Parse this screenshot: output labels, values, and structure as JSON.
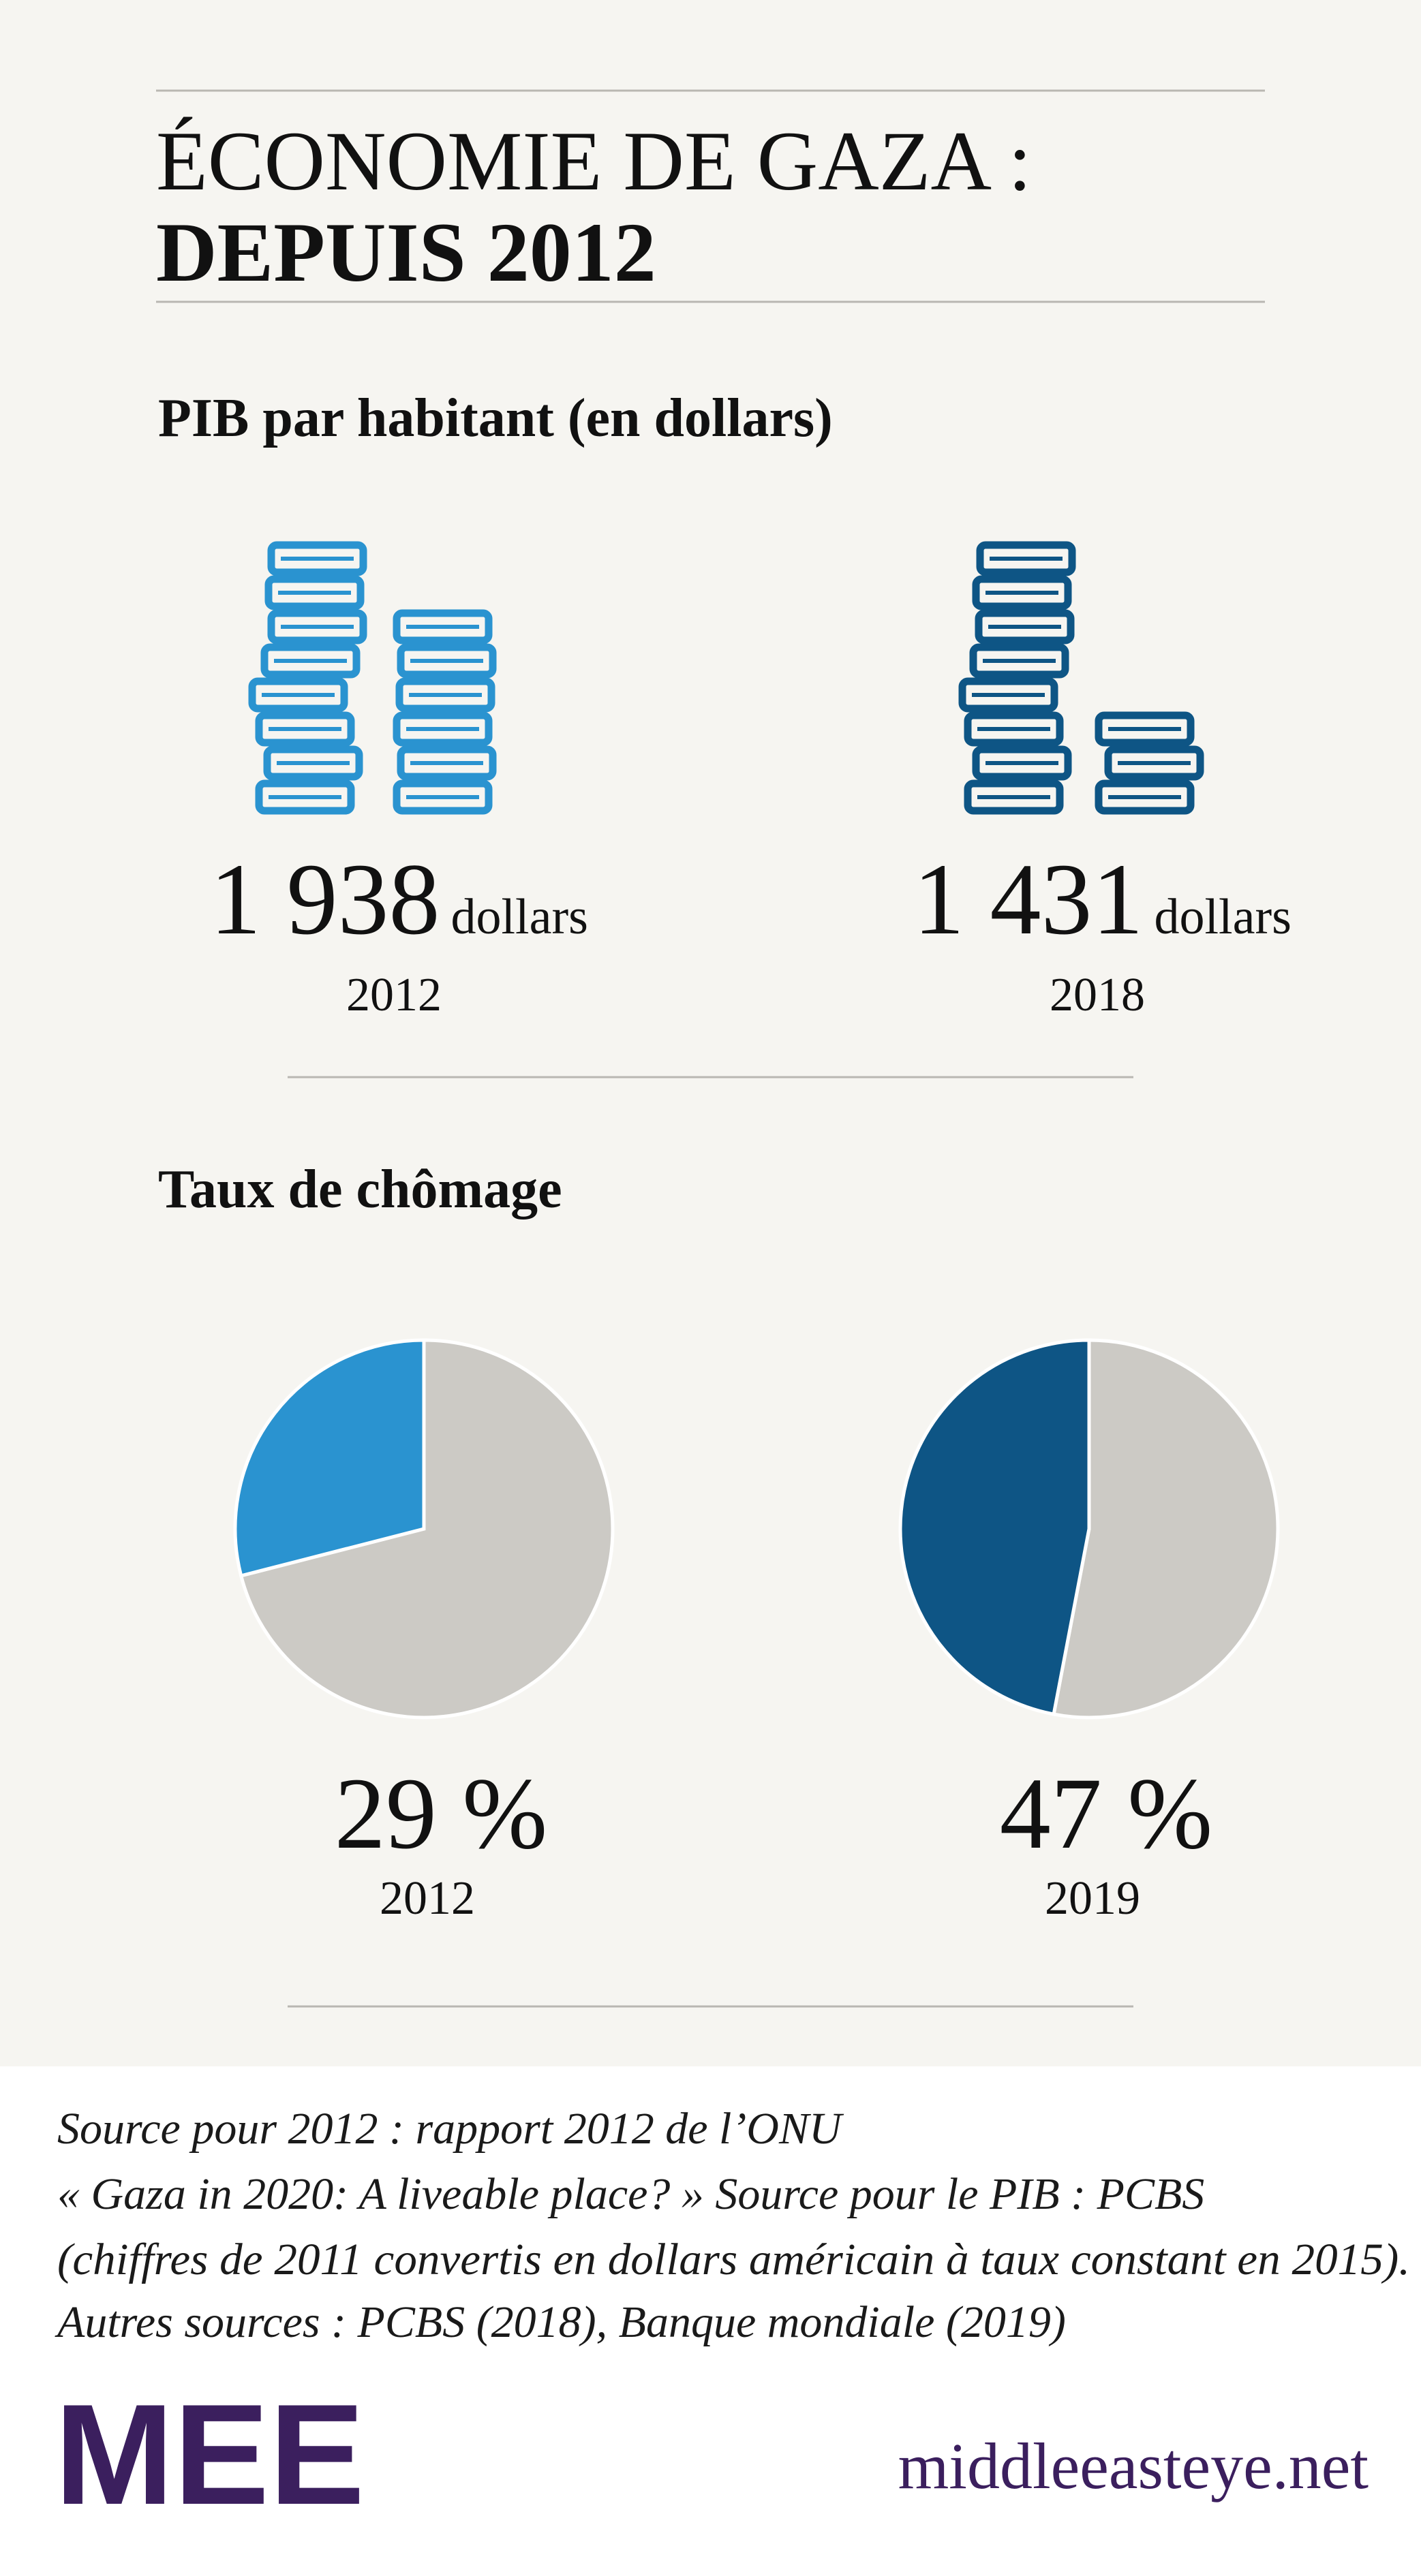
{
  "header": {
    "title_line1": "ÉCONOMIE DE GAZA :",
    "title_line2": "DEPUIS 2012"
  },
  "gdp": {
    "heading": "PIB par habitant (en dollars)",
    "items": [
      {
        "value": "1 938",
        "unit": "dollars",
        "year": "2012",
        "color": "#2a93d0"
      },
      {
        "value": "1 431",
        "unit": "dollars",
        "year": "2018",
        "color": "#0e5585"
      }
    ]
  },
  "unemployment": {
    "heading": "Taux de chômage",
    "charts": [
      {
        "type": "pie",
        "values": [
          29
        ],
        "value_labels": [
          "29 %"
        ],
        "year": "2012",
        "color": "#2a93d0",
        "rest_color": "#cccac5"
      },
      {
        "type": "pie",
        "values": [
          47
        ],
        "value_labels": [
          "47 %"
        ],
        "year": "2019",
        "color": "#0e5585",
        "rest_color": "#cccac5"
      }
    ]
  },
  "source": {
    "lines": [
      "Source pour 2012 : rapport 2012 de l’ONU",
      "« Gaza in 2020: A liveable place? » Source pour le PIB : PCBS",
      "(chiffres de 2011 convertis en dollars américain à taux constant en 2015).",
      "Autres sources : PCBS (2018), Banque mondiale (2019)"
    ]
  },
  "footer": {
    "logo": "MEE",
    "site": "middleeasteye.net"
  }
}
